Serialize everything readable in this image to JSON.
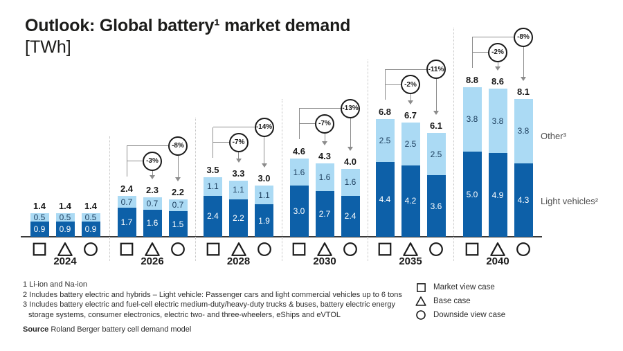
{
  "title": {
    "line1": "Outlook: Global battery¹ market demand",
    "line2": "[TWh]"
  },
  "colors": {
    "light_vehicles_bar": "#0d60a8",
    "other_bar": "#abdaf4",
    "annotation_line": "#8c8c8c",
    "axis": "#3a3a3a"
  },
  "series_labels": {
    "other": "Other³",
    "light_vehicles": "Light vehicles²"
  },
  "legend": [
    {
      "symbol": "square",
      "label": "Market view case"
    },
    {
      "symbol": "triangle",
      "label": "Base case"
    },
    {
      "symbol": "circle",
      "label": "Downside view case"
    }
  ],
  "footnotes": [
    "1 Li-ion and Na-ion",
    "2 Includes battery electric and hybrids – Light vehicle: Passenger cars and light commercial vehicles up to 6 tons",
    "3 Includes battery electric and fuel-cell electric medium-duty/heavy-duty trucks & buses, battery electric energy storage systems, consumer electronics, electric two- and three-wheelers, eShips and eVTOL"
  ],
  "source": {
    "label": "Source",
    "text": " Roland Berger battery cell demand model"
  },
  "chart_data": {
    "type": "bar",
    "stacked": true,
    "unit": "TWh",
    "title": "Outlook: Global battery market demand [TWh]",
    "series_order": [
      "light_vehicles",
      "other"
    ],
    "case_order": [
      "Market view case",
      "Base case",
      "Downside view case"
    ],
    "legend_position": "bottom-right",
    "groups": [
      {
        "year": "2024",
        "cases": [
          {
            "case": "Market view case",
            "light_vehicles": "0.9",
            "other": "0.5",
            "total": "1.4"
          },
          {
            "case": "Base case",
            "light_vehicles": "0.9",
            "other": "0.5",
            "total": "1.4"
          },
          {
            "case": "Downside view case",
            "light_vehicles": "0.9",
            "other": "0.5",
            "total": "1.4"
          }
        ],
        "deltas": []
      },
      {
        "year": "2026",
        "cases": [
          {
            "case": "Market view case",
            "light_vehicles": "1.7",
            "other": "0.7",
            "total": "2.4"
          },
          {
            "case": "Base case",
            "light_vehicles": "1.6",
            "other": "0.7",
            "total": "2.3"
          },
          {
            "case": "Downside view case",
            "light_vehicles": "1.5",
            "other": "0.7",
            "total": "2.2"
          }
        ],
        "deltas": [
          {
            "target": 1,
            "pct": "-3%"
          },
          {
            "target": 2,
            "pct": "-8%"
          }
        ]
      },
      {
        "year": "2028",
        "cases": [
          {
            "case": "Market view case",
            "light_vehicles": "2.4",
            "other": "1.1",
            "total": "3.5"
          },
          {
            "case": "Base case",
            "light_vehicles": "2.2",
            "other": "1.1",
            "total": "3.3"
          },
          {
            "case": "Downside view case",
            "light_vehicles": "1.9",
            "other": "1.1",
            "total": "3.0"
          }
        ],
        "deltas": [
          {
            "target": 1,
            "pct": "-7%"
          },
          {
            "target": 2,
            "pct": "-14%"
          }
        ]
      },
      {
        "year": "2030",
        "cases": [
          {
            "case": "Market view case",
            "light_vehicles": "3.0",
            "other": "1.6",
            "total": "4.6"
          },
          {
            "case": "Base case",
            "light_vehicles": "2.7",
            "other": "1.6",
            "total": "4.3"
          },
          {
            "case": "Downside view case",
            "light_vehicles": "2.4",
            "other": "1.6",
            "total": "4.0"
          }
        ],
        "deltas": [
          {
            "target": 1,
            "pct": "-7%"
          },
          {
            "target": 2,
            "pct": "-13%"
          }
        ]
      },
      {
        "year": "2035",
        "cases": [
          {
            "case": "Market view case",
            "light_vehicles": "4.4",
            "other": "2.5",
            "total": "6.8"
          },
          {
            "case": "Base case",
            "light_vehicles": "4.2",
            "other": "2.5",
            "total": "6.7"
          },
          {
            "case": "Downside view case",
            "light_vehicles": "3.6",
            "other": "2.5",
            "total": "6.1"
          }
        ],
        "deltas": [
          {
            "target": 1,
            "pct": "-2%"
          },
          {
            "target": 2,
            "pct": "-11%"
          }
        ]
      },
      {
        "year": "2040",
        "cases": [
          {
            "case": "Market view case",
            "light_vehicles": "5.0",
            "other": "3.8",
            "total": "8.8"
          },
          {
            "case": "Base case",
            "light_vehicles": "4.9",
            "other": "3.8",
            "total": "8.6"
          },
          {
            "case": "Downside view case",
            "light_vehicles": "4.3",
            "other": "3.8",
            "total": "8.1"
          }
        ],
        "deltas": [
          {
            "target": 1,
            "pct": "-2%"
          },
          {
            "target": 2,
            "pct": "-8%"
          }
        ]
      }
    ]
  }
}
